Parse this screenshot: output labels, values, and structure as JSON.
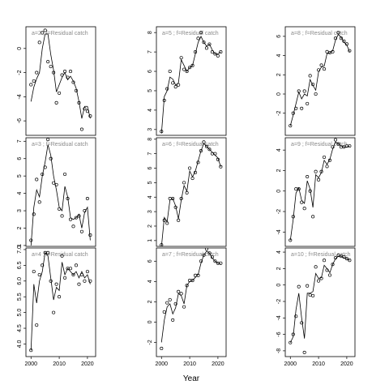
{
  "chart_data": [
    {
      "type": "line",
      "title": "a=2 ; f=Residual catch",
      "x": [
        2000,
        2001,
        2002,
        2003,
        2004,
        2005,
        2006,
        2007,
        2008,
        2009,
        2010,
        2011,
        2012,
        2013,
        2014,
        2015,
        2016,
        2017,
        2018,
        2019,
        2020,
        2021
      ],
      "xlim": [
        1998.2,
        2022.9
      ],
      "ylim": [
        -7.2,
        1.8
      ],
      "yticks": [
        -6,
        -4,
        -2,
        0
      ],
      "series": [
        {
          "color": "#000000",
          "marker": "circle",
          "values": [
            -3.0,
            -2.7,
            -2.0,
            0.5,
            1.3,
            1.5,
            -1.1,
            -1.5,
            -2.0,
            -4.5,
            -3.7,
            -2.2,
            -1.9,
            -2.4,
            -1.9,
            -2.8,
            -3.5,
            -4.5,
            -6.7,
            -5.0,
            -5.2,
            -5.6
          ]
        },
        {
          "color": "#000000",
          "marker": "none",
          "values": [
            -4.4,
            -3.2,
            -2.5,
            -2.0,
            0.0,
            1.2,
            1.2,
            -0.5,
            -1.8,
            -3.6,
            -3.0,
            -2.4,
            -2.0,
            -2.6,
            -2.3,
            -2.7,
            -3.3,
            -4.4,
            -5.8,
            -4.8,
            -4.8,
            -5.8
          ]
        }
      ]
    },
    {
      "type": "line",
      "title": "a=3 ; f=Residual catch",
      "x": [
        2000,
        2001,
        2002,
        2003,
        2004,
        2005,
        2006,
        2007,
        2008,
        2009,
        2010,
        2011,
        2012,
        2013,
        2014,
        2015,
        2016,
        2017,
        2018,
        2019,
        2020,
        2021
      ],
      "xlim": [
        1998.2,
        2022.9
      ],
      "ylim": [
        0.95,
        7.2
      ],
      "yticks": [
        1,
        2,
        3,
        4,
        5,
        6,
        7
      ],
      "series": [
        {
          "color": "#000000",
          "marker": "circle",
          "values": [
            1.3,
            2.8,
            4.8,
            3.5,
            5.1,
            5.5,
            7.1,
            6.0,
            4.6,
            4.5,
            3.1,
            2.7,
            5.1,
            3.7,
            2.5,
            2.1,
            2.6,
            2.7,
            1.8,
            3.0,
            3.7,
            1.6
          ]
        },
        {
          "color": "#000000",
          "marker": "none",
          "values": [
            1.0,
            3.2,
            4.2,
            3.8,
            5.0,
            5.8,
            6.8,
            6.2,
            5.0,
            4.2,
            3.2,
            3.0,
            4.4,
            3.8,
            2.6,
            2.5,
            2.6,
            2.8,
            2.0,
            2.9,
            3.2,
            1.3
          ]
        }
      ]
    },
    {
      "type": "line",
      "title": "a=4 ; f=Residual catch",
      "x": [
        2000,
        2001,
        2002,
        2003,
        2004,
        2005,
        2006,
        2007,
        2008,
        2009,
        2010,
        2011,
        2012,
        2013,
        2014,
        2015,
        2016,
        2017,
        2018,
        2019,
        2020,
        2021
      ],
      "xlim": [
        1998.2,
        2022.9
      ],
      "ylim": [
        3.6,
        7.05
      ],
      "xticks": [
        2000,
        2010,
        2020
      ],
      "yticks": [
        {
          "value": 4,
          "label": "4.0"
        },
        {
          "value": 4.5,
          "label": "4.5"
        },
        {
          "value": 5,
          "label": "5.0"
        },
        {
          "value": 5.5,
          "label": "5.5"
        },
        {
          "value": 6,
          "label": "6.0"
        },
        {
          "value": 6.5,
          "label": "6.5"
        },
        {
          "value": 7,
          "label": "7.0"
        }
      ],
      "series": [
        {
          "color": "#000000",
          "marker": "circle",
          "values": [
            3.8,
            6.3,
            4.6,
            6.2,
            6.5,
            6.9,
            6.9,
            6.0,
            5.0,
            5.9,
            5.5,
            6.8,
            6.1,
            6.4,
            6.4,
            6.2,
            6.5,
            5.9,
            6.2,
            6.0,
            6.3,
            6.0
          ]
        },
        {
          "color": "#000000",
          "marker": "none",
          "values": [
            3.8,
            5.9,
            5.3,
            6.0,
            6.3,
            6.9,
            6.8,
            6.1,
            5.4,
            5.8,
            5.7,
            6.6,
            6.2,
            6.4,
            6.3,
            6.2,
            6.3,
            6.1,
            6.3,
            6.1,
            6.2,
            5.9
          ]
        }
      ]
    },
    {
      "type": "line",
      "title": "a=5 ; f=Residual catch",
      "x": [
        2000,
        2001,
        2002,
        2003,
        2004,
        2005,
        2006,
        2007,
        2008,
        2009,
        2010,
        2011,
        2012,
        2013,
        2014,
        2015,
        2016,
        2017,
        2018,
        2019,
        2020,
        2021
      ],
      "xlim": [
        1998.2,
        2022.9
      ],
      "ylim": [
        2.7,
        8.3
      ],
      "yticks": [
        3,
        4,
        5,
        6,
        7,
        8
      ],
      "series": [
        {
          "color": "#000000",
          "marker": "circle",
          "values": [
            2.9,
            4.5,
            5.1,
            6.0,
            5.4,
            5.2,
            5.3,
            6.7,
            6.1,
            6.0,
            6.2,
            6.3,
            7.0,
            7.7,
            8.0,
            7.5,
            7.2,
            7.4,
            7.0,
            6.9,
            6.8,
            7.0
          ]
        },
        {
          "color": "#000000",
          "marker": "none",
          "values": [
            2.8,
            4.7,
            5.0,
            5.7,
            5.6,
            5.3,
            5.4,
            6.6,
            6.3,
            6.0,
            6.2,
            6.3,
            6.9,
            7.5,
            7.8,
            7.5,
            7.3,
            7.4,
            7.1,
            6.9,
            6.9,
            7.0
          ]
        }
      ]
    },
    {
      "type": "line",
      "title": "a=6 ; f=Residual catch",
      "x": [
        2000,
        2001,
        2002,
        2003,
        2004,
        2005,
        2006,
        2007,
        2008,
        2009,
        2010,
        2011,
        2012,
        2013,
        2014,
        2015,
        2016,
        2017,
        2018,
        2019,
        2020,
        2021
      ],
      "xlim": [
        1998.2,
        2022.9
      ],
      "ylim": [
        0.6,
        8.1
      ],
      "yticks": [
        1,
        2,
        3,
        4,
        5,
        6,
        7,
        8
      ],
      "series": [
        {
          "color": "#000000",
          "marker": "circle",
          "values": [
            0.7,
            2.4,
            2.2,
            3.9,
            3.9,
            3.3,
            2.4,
            3.9,
            5.0,
            4.3,
            6.0,
            5.3,
            5.7,
            6.4,
            7.2,
            7.8,
            7.5,
            7.3,
            7.0,
            7.0,
            6.6,
            6.1
          ]
        },
        {
          "color": "#000000",
          "marker": "none",
          "values": [
            0.6,
            2.6,
            2.3,
            3.8,
            3.9,
            3.4,
            2.5,
            3.8,
            4.8,
            4.4,
            5.8,
            5.4,
            5.8,
            6.5,
            7.2,
            7.7,
            7.5,
            7.3,
            7.1,
            6.9,
            6.7,
            6.1
          ]
        }
      ]
    },
    {
      "type": "line",
      "title": "a=7 ; f=Residual catch",
      "xlabel": "Year",
      "x": [
        2000,
        2001,
        2002,
        2003,
        2004,
        2005,
        2006,
        2007,
        2008,
        2009,
        2010,
        2011,
        2012,
        2013,
        2014,
        2015,
        2016,
        2017,
        2018,
        2019,
        2020,
        2021
      ],
      "xlim": [
        1998.2,
        2022.9
      ],
      "ylim": [
        -3.4,
        7.3
      ],
      "xticks": [
        2000,
        2010,
        2020
      ],
      "yticks": [
        -2,
        0,
        2,
        4,
        6
      ],
      "series": [
        {
          "color": "#000000",
          "marker": "circle",
          "values": [
            -2.6,
            1.0,
            1.9,
            2.2,
            0.2,
            1.8,
            3.0,
            2.8,
            1.5,
            3.6,
            4.1,
            4.1,
            4.6,
            4.6,
            6.0,
            6.6,
            7.2,
            6.8,
            6.4,
            6.0,
            5.8,
            5.8
          ]
        },
        {
          "color": "#000000",
          "marker": "none",
          "values": [
            -2.0,
            0.2,
            1.5,
            1.8,
            0.8,
            1.4,
            2.8,
            2.6,
            1.8,
            3.6,
            4.0,
            4.1,
            4.4,
            4.7,
            5.8,
            6.6,
            7.0,
            6.8,
            6.3,
            6.0,
            5.8,
            5.7
          ]
        }
      ]
    },
    {
      "type": "line",
      "title": "a=8 ; f=Residual catch",
      "x": [
        2000,
        2001,
        2002,
        2003,
        2004,
        2005,
        2006,
        2007,
        2008,
        2009,
        2010,
        2011,
        2012,
        2013,
        2014,
        2015,
        2016,
        2017,
        2018,
        2019,
        2020,
        2021
      ],
      "xlim": [
        1998.2,
        2022.9
      ],
      "ylim": [
        -4.3,
        7.0
      ],
      "yticks": [
        -2,
        0,
        2,
        4,
        6
      ],
      "series": [
        {
          "color": "#000000",
          "marker": "circle",
          "values": [
            -3.3,
            -2.0,
            -1.5,
            0.3,
            -1.5,
            0.3,
            -1.0,
            1.9,
            1.0,
            0.0,
            2.5,
            3.0,
            2.6,
            4.4,
            4.3,
            4.4,
            5.8,
            6.4,
            5.8,
            5.5,
            5.2,
            4.5
          ]
        },
        {
          "color": "#000000",
          "marker": "none",
          "values": [
            -3.3,
            -2.2,
            -1.0,
            0.2,
            -0.5,
            0.0,
            -0.2,
            1.5,
            0.9,
            0.4,
            2.3,
            2.8,
            2.9,
            4.2,
            4.3,
            4.5,
            5.6,
            6.2,
            5.9,
            5.4,
            5.1,
            4.4
          ]
        }
      ]
    },
    {
      "type": "line",
      "title": "a=9 ; f=Residual catch",
      "x": [
        2000,
        2001,
        2002,
        2003,
        2004,
        2005,
        2006,
        2007,
        2008,
        2009,
        2010,
        2011,
        2012,
        2013,
        2014,
        2015,
        2016,
        2017,
        2018,
        2019,
        2020,
        2021
      ],
      "xlim": [
        1998.2,
        2022.9
      ],
      "ylim": [
        -5.4,
        5.2
      ],
      "yticks": [
        -4,
        -2,
        0,
        2,
        4
      ],
      "series": [
        {
          "color": "#000000",
          "marker": "circle",
          "values": [
            -4.8,
            -2.5,
            0.2,
            0.2,
            -1.1,
            -1.7,
            1.4,
            0.0,
            -2.5,
            1.9,
            1.1,
            1.9,
            3.3,
            2.4,
            3.0,
            4.3,
            5.0,
            4.6,
            4.3,
            4.3,
            4.4,
            4.4
          ]
        },
        {
          "color": "#000000",
          "marker": "none",
          "values": [
            -4.8,
            -2.8,
            -0.2,
            0.3,
            -0.9,
            -1.2,
            1.0,
            0.2,
            -1.6,
            1.6,
            1.3,
            1.8,
            3.0,
            2.6,
            3.1,
            4.1,
            4.8,
            4.6,
            4.4,
            4.3,
            4.3,
            4.4
          ]
        }
      ]
    },
    {
      "type": "line",
      "title": "a=10 ; f=Residual catch",
      "x": [
        2000,
        2001,
        2002,
        2003,
        2004,
        2005,
        2006,
        2007,
        2008,
        2009,
        2010,
        2011,
        2012,
        2013,
        2014,
        2015,
        2016,
        2017,
        2018,
        2019,
        2020,
        2021
      ],
      "xlim": [
        1998.2,
        2022.9
      ],
      "ylim": [
        -8.7,
        4.5
      ],
      "xticks": [
        2000,
        2010,
        2020
      ],
      "yticks": [
        -8,
        -6,
        -4,
        -2,
        0,
        2,
        4
      ],
      "series": [
        {
          "color": "#000000",
          "marker": "circle",
          "values": [
            -7.0,
            -6.0,
            -3.8,
            -0.2,
            -4.6,
            -8.2,
            -0.1,
            -1.2,
            -1.3,
            2.2,
            0.5,
            0.8,
            3.0,
            1.8,
            1.2,
            2.5,
            3.3,
            3.6,
            3.5,
            3.4,
            3.2,
            3.0
          ]
        },
        {
          "color": "#000000",
          "marker": "none",
          "values": [
            -7.0,
            -6.3,
            -3.0,
            -1.0,
            -4.0,
            -6.5,
            -1.0,
            -1.0,
            -0.8,
            1.4,
            0.8,
            0.9,
            2.4,
            2.0,
            1.5,
            2.5,
            3.2,
            3.5,
            3.5,
            3.3,
            3.2,
            3.0
          ]
        }
      ]
    }
  ]
}
